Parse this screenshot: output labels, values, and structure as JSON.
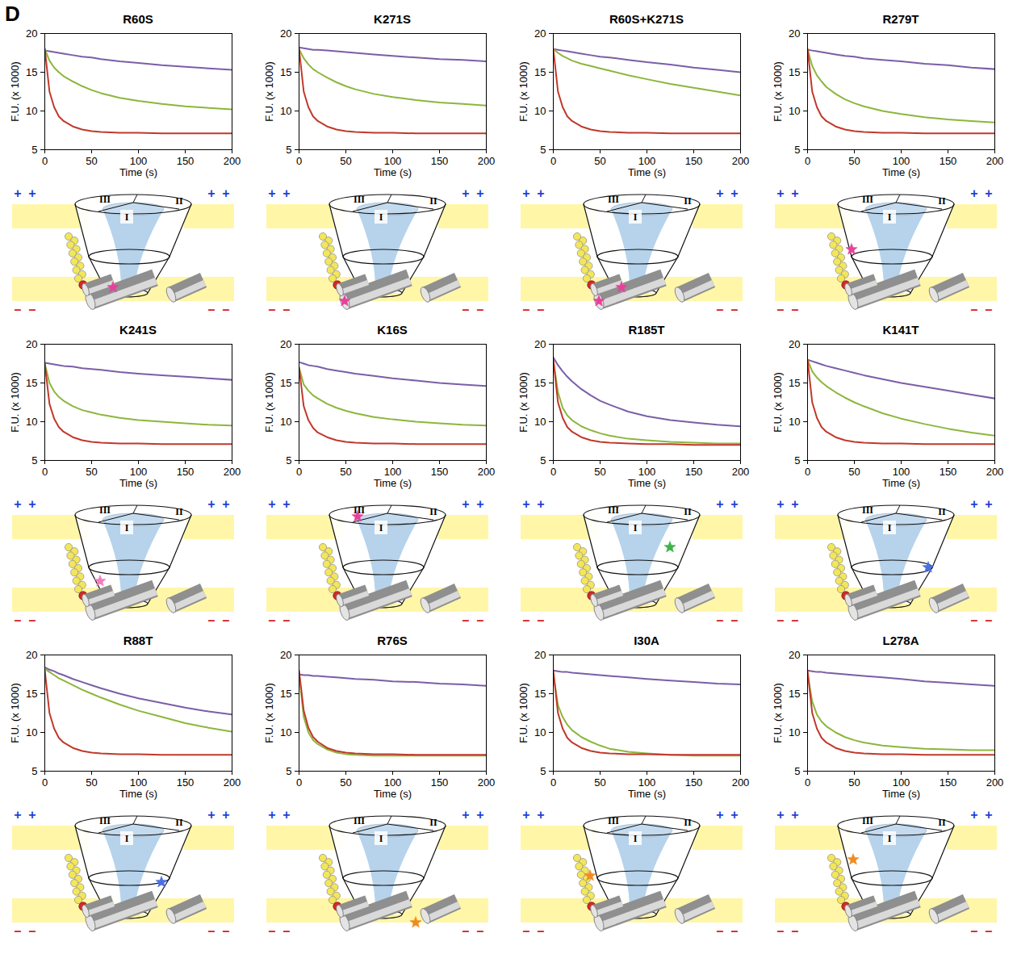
{
  "panel_label": "D",
  "diagram": {
    "sectors": [
      "I",
      "II",
      "III"
    ],
    "outside_sign": "+",
    "inside_sign": "–"
  },
  "chart_data": [
    {
      "type": "line",
      "title": "R60S",
      "x_label": "Time (s)",
      "y_label": "F.U. (x 1000)",
      "x": [
        0,
        5,
        10,
        15,
        20,
        30,
        40,
        50,
        60,
        80,
        100,
        125,
        150,
        175,
        200
      ],
      "xlim": [
        0,
        200
      ],
      "xticks": [
        0,
        50,
        100,
        150,
        200
      ],
      "ylim": [
        5,
        20
      ],
      "yticks": [
        5,
        10,
        15,
        20
      ],
      "series": [
        {
          "color": "#7b5ea7",
          "values": [
            17.8,
            17.7,
            17.6,
            17.5,
            17.4,
            17.2,
            17.0,
            16.9,
            16.7,
            16.4,
            16.2,
            15.9,
            15.7,
            15.5,
            15.3
          ]
        },
        {
          "color": "#8db63c",
          "values": [
            18.0,
            16.5,
            15.6,
            15.0,
            14.5,
            13.8,
            13.2,
            12.7,
            12.3,
            11.7,
            11.3,
            10.9,
            10.6,
            10.4,
            10.2
          ]
        },
        {
          "color": "#c0392b",
          "values": [
            18.0,
            12.5,
            10.5,
            9.3,
            8.7,
            8.0,
            7.6,
            7.4,
            7.3,
            7.2,
            7.2,
            7.1,
            7.1,
            7.1,
            7.1
          ]
        }
      ]
    },
    {
      "type": "line",
      "title": "K271S",
      "x_label": "Time (s)",
      "y_label": "F.U. (x 1000)",
      "x": [
        0,
        5,
        10,
        15,
        20,
        30,
        40,
        50,
        60,
        80,
        100,
        125,
        150,
        175,
        200
      ],
      "xlim": [
        0,
        200
      ],
      "xticks": [
        0,
        50,
        100,
        150,
        200
      ],
      "ylim": [
        5,
        20
      ],
      "yticks": [
        5,
        10,
        15,
        20
      ],
      "series": [
        {
          "color": "#7b5ea7",
          "values": [
            18.2,
            18.1,
            18.0,
            17.9,
            17.9,
            17.8,
            17.7,
            17.6,
            17.5,
            17.3,
            17.1,
            16.9,
            16.7,
            16.6,
            16.4
          ]
        },
        {
          "color": "#8db63c",
          "values": [
            18.0,
            16.8,
            16.0,
            15.4,
            15.0,
            14.3,
            13.7,
            13.2,
            12.8,
            12.2,
            11.8,
            11.4,
            11.1,
            10.9,
            10.7
          ]
        },
        {
          "color": "#c0392b",
          "values": [
            18.0,
            12.5,
            10.5,
            9.3,
            8.7,
            8.0,
            7.6,
            7.4,
            7.3,
            7.2,
            7.2,
            7.1,
            7.1,
            7.1,
            7.1
          ]
        }
      ]
    },
    {
      "type": "line",
      "title": "R60S+K271S",
      "x_label": "Time (s)",
      "y_label": "F.U. (x 1000)",
      "x": [
        0,
        5,
        10,
        15,
        20,
        30,
        40,
        50,
        60,
        80,
        100,
        125,
        150,
        175,
        200
      ],
      "xlim": [
        0,
        200
      ],
      "xticks": [
        0,
        50,
        100,
        150,
        200
      ],
      "ylim": [
        5,
        20
      ],
      "yticks": [
        5,
        10,
        15,
        20
      ],
      "series": [
        {
          "color": "#7b5ea7",
          "values": [
            18.0,
            17.9,
            17.8,
            17.7,
            17.6,
            17.4,
            17.2,
            17.0,
            16.9,
            16.6,
            16.3,
            16.0,
            15.6,
            15.3,
            15.0
          ]
        },
        {
          "color": "#8db63c",
          "values": [
            18.0,
            17.5,
            17.1,
            16.8,
            16.5,
            16.1,
            15.8,
            15.5,
            15.2,
            14.6,
            14.1,
            13.5,
            13.0,
            12.5,
            12.0
          ]
        },
        {
          "color": "#c0392b",
          "values": [
            18.0,
            12.5,
            10.5,
            9.3,
            8.7,
            8.0,
            7.6,
            7.4,
            7.3,
            7.2,
            7.2,
            7.1,
            7.1,
            7.1,
            7.1
          ]
        }
      ]
    },
    {
      "type": "line",
      "title": "R279T",
      "x_label": "Time (s)",
      "y_label": "F.U. (x 1000)",
      "x": [
        0,
        5,
        10,
        15,
        20,
        30,
        40,
        50,
        60,
        80,
        100,
        125,
        150,
        175,
        200
      ],
      "xlim": [
        0,
        200
      ],
      "xticks": [
        0,
        50,
        100,
        150,
        200
      ],
      "ylim": [
        5,
        20
      ],
      "yticks": [
        5,
        10,
        15,
        20
      ],
      "series": [
        {
          "color": "#7b5ea7",
          "values": [
            17.9,
            17.8,
            17.7,
            17.6,
            17.5,
            17.3,
            17.1,
            17.0,
            16.8,
            16.6,
            16.4,
            16.1,
            15.9,
            15.6,
            15.4
          ]
        },
        {
          "color": "#8db63c",
          "values": [
            18.0,
            15.8,
            14.6,
            13.8,
            13.1,
            12.2,
            11.5,
            11.0,
            10.6,
            10.0,
            9.6,
            9.2,
            8.9,
            8.7,
            8.5
          ]
        },
        {
          "color": "#c0392b",
          "values": [
            18.0,
            12.5,
            10.5,
            9.3,
            8.7,
            8.0,
            7.6,
            7.4,
            7.3,
            7.2,
            7.2,
            7.1,
            7.1,
            7.1,
            7.1
          ]
        }
      ]
    },
    {
      "type": "line",
      "title": "K241S",
      "x_label": "Time (s)",
      "y_label": "F.U. (x 1000)",
      "x": [
        0,
        5,
        10,
        15,
        20,
        30,
        40,
        50,
        60,
        80,
        100,
        125,
        150,
        175,
        200
      ],
      "xlim": [
        0,
        200
      ],
      "xticks": [
        0,
        50,
        100,
        150,
        200
      ],
      "ylim": [
        5,
        20
      ],
      "yticks": [
        5,
        10,
        15,
        20
      ],
      "series": [
        {
          "color": "#7b5ea7",
          "values": [
            17.6,
            17.5,
            17.4,
            17.3,
            17.2,
            17.1,
            16.9,
            16.8,
            16.7,
            16.4,
            16.2,
            16.0,
            15.8,
            15.6,
            15.4
          ]
        },
        {
          "color": "#8db63c",
          "values": [
            17.5,
            15.0,
            13.9,
            13.2,
            12.7,
            12.0,
            11.5,
            11.2,
            10.9,
            10.5,
            10.2,
            10.0,
            9.8,
            9.6,
            9.5
          ]
        },
        {
          "color": "#c0392b",
          "values": [
            17.5,
            12.3,
            10.4,
            9.3,
            8.7,
            8.0,
            7.6,
            7.4,
            7.3,
            7.2,
            7.2,
            7.1,
            7.1,
            7.1,
            7.1
          ]
        }
      ]
    },
    {
      "type": "line",
      "title": "K16S",
      "x_label": "Time (s)",
      "y_label": "F.U. (x 1000)",
      "x": [
        0,
        5,
        10,
        15,
        20,
        30,
        40,
        50,
        60,
        80,
        100,
        125,
        150,
        175,
        200
      ],
      "xlim": [
        0,
        200
      ],
      "xticks": [
        0,
        50,
        100,
        150,
        200
      ],
      "ylim": [
        5,
        20
      ],
      "yticks": [
        5,
        10,
        15,
        20
      ],
      "series": [
        {
          "color": "#7b5ea7",
          "values": [
            17.7,
            17.5,
            17.3,
            17.2,
            17.1,
            16.8,
            16.6,
            16.4,
            16.2,
            15.9,
            15.6,
            15.3,
            15.0,
            14.8,
            14.6
          ]
        },
        {
          "color": "#8db63c",
          "values": [
            17.0,
            14.8,
            14.0,
            13.4,
            13.0,
            12.3,
            11.8,
            11.4,
            11.1,
            10.6,
            10.3,
            10.0,
            9.8,
            9.6,
            9.5
          ]
        },
        {
          "color": "#c0392b",
          "values": [
            17.0,
            12.0,
            10.2,
            9.2,
            8.6,
            8.0,
            7.6,
            7.4,
            7.3,
            7.2,
            7.2,
            7.1,
            7.1,
            7.1,
            7.1
          ]
        }
      ]
    },
    {
      "type": "line",
      "title": "R185T",
      "x_label": "Time (s)",
      "y_label": "F.U. (x 1000)",
      "x": [
        0,
        5,
        10,
        15,
        20,
        30,
        40,
        50,
        60,
        80,
        100,
        125,
        150,
        175,
        200
      ],
      "xlim": [
        0,
        200
      ],
      "xticks": [
        0,
        50,
        100,
        150,
        200
      ],
      "ylim": [
        5,
        20
      ],
      "yticks": [
        5,
        10,
        15,
        20
      ],
      "series": [
        {
          "color": "#7b5ea7",
          "values": [
            18.3,
            17.3,
            16.5,
            15.8,
            15.2,
            14.2,
            13.4,
            12.7,
            12.2,
            11.3,
            10.7,
            10.2,
            9.9,
            9.6,
            9.4
          ]
        },
        {
          "color": "#8db63c",
          "values": [
            18.0,
            13.8,
            11.8,
            10.8,
            10.2,
            9.4,
            8.9,
            8.5,
            8.2,
            7.8,
            7.6,
            7.4,
            7.3,
            7.2,
            7.2
          ]
        },
        {
          "color": "#c0392b",
          "values": [
            18.0,
            12.5,
            10.5,
            9.3,
            8.7,
            8.0,
            7.6,
            7.4,
            7.3,
            7.2,
            7.1,
            7.1,
            7.0,
            7.0,
            7.0
          ]
        }
      ]
    },
    {
      "type": "line",
      "title": "K141T",
      "x_label": "Time (s)",
      "y_label": "F.U. (x 1000)",
      "x": [
        0,
        5,
        10,
        15,
        20,
        30,
        40,
        50,
        60,
        80,
        100,
        125,
        150,
        175,
        200
      ],
      "xlim": [
        0,
        200
      ],
      "xticks": [
        0,
        50,
        100,
        150,
        200
      ],
      "ylim": [
        5,
        20
      ],
      "yticks": [
        5,
        10,
        15,
        20
      ],
      "series": [
        {
          "color": "#7b5ea7",
          "values": [
            18.0,
            17.8,
            17.6,
            17.4,
            17.2,
            16.9,
            16.6,
            16.3,
            16.0,
            15.5,
            15.0,
            14.5,
            14.0,
            13.5,
            13.0
          ]
        },
        {
          "color": "#8db63c",
          "values": [
            18.0,
            16.5,
            15.7,
            15.1,
            14.6,
            13.8,
            13.1,
            12.5,
            12.0,
            11.1,
            10.4,
            9.7,
            9.1,
            8.6,
            8.2
          ]
        },
        {
          "color": "#c0392b",
          "values": [
            18.0,
            12.5,
            10.5,
            9.3,
            8.7,
            8.0,
            7.6,
            7.4,
            7.3,
            7.2,
            7.2,
            7.1,
            7.1,
            7.1,
            7.1
          ]
        }
      ]
    },
    {
      "type": "line",
      "title": "R88T",
      "x_label": "Time (s)",
      "y_label": "F.U. (x 1000)",
      "x": [
        0,
        5,
        10,
        15,
        20,
        30,
        40,
        50,
        60,
        80,
        100,
        125,
        150,
        175,
        200
      ],
      "xlim": [
        0,
        200
      ],
      "xticks": [
        0,
        50,
        100,
        150,
        200
      ],
      "ylim": [
        5,
        20
      ],
      "yticks": [
        5,
        10,
        15,
        20
      ],
      "series": [
        {
          "color": "#7b5ea7",
          "values": [
            18.4,
            18.1,
            17.9,
            17.6,
            17.4,
            16.9,
            16.5,
            16.1,
            15.7,
            15.0,
            14.4,
            13.8,
            13.2,
            12.7,
            12.3
          ]
        },
        {
          "color": "#8db63c",
          "values": [
            18.2,
            17.8,
            17.4,
            17.0,
            16.7,
            16.1,
            15.5,
            15.0,
            14.5,
            13.6,
            12.8,
            12.0,
            11.2,
            10.6,
            10.1
          ]
        },
        {
          "color": "#c0392b",
          "values": [
            18.0,
            12.5,
            10.5,
            9.3,
            8.7,
            8.0,
            7.6,
            7.4,
            7.3,
            7.2,
            7.2,
            7.1,
            7.1,
            7.1,
            7.1
          ]
        }
      ]
    },
    {
      "type": "line",
      "title": "R76S",
      "x_label": "Time (s)",
      "y_label": "F.U. (x 1000)",
      "x": [
        0,
        5,
        10,
        15,
        20,
        30,
        40,
        50,
        60,
        80,
        100,
        125,
        150,
        175,
        200
      ],
      "xlim": [
        0,
        200
      ],
      "xticks": [
        0,
        50,
        100,
        150,
        200
      ],
      "ylim": [
        5,
        20
      ],
      "yticks": [
        5,
        10,
        15,
        20
      ],
      "series": [
        {
          "color": "#7b5ea7",
          "values": [
            17.5,
            17.4,
            17.4,
            17.3,
            17.3,
            17.2,
            17.1,
            17.0,
            16.9,
            16.8,
            16.6,
            16.5,
            16.3,
            16.2,
            16.0
          ]
        },
        {
          "color": "#8db63c",
          "values": [
            17.5,
            12.0,
            10.0,
            9.0,
            8.5,
            7.8,
            7.4,
            7.2,
            7.1,
            7.0,
            7.0,
            7.0,
            7.0,
            7.0,
            7.0
          ]
        },
        {
          "color": "#c0392b",
          "values": [
            18.0,
            12.8,
            10.6,
            9.4,
            8.8,
            8.0,
            7.6,
            7.4,
            7.3,
            7.2,
            7.2,
            7.1,
            7.1,
            7.1,
            7.1
          ]
        }
      ]
    },
    {
      "type": "line",
      "title": "I30A",
      "x_label": "Time (s)",
      "y_label": "F.U. (x 1000)",
      "x": [
        0,
        5,
        10,
        15,
        20,
        30,
        40,
        50,
        60,
        80,
        100,
        125,
        150,
        175,
        200
      ],
      "xlim": [
        0,
        200
      ],
      "xticks": [
        0,
        50,
        100,
        150,
        200
      ],
      "ylim": [
        5,
        20
      ],
      "yticks": [
        5,
        10,
        15,
        20
      ],
      "series": [
        {
          "color": "#7b5ea7",
          "values": [
            18.0,
            17.9,
            17.8,
            17.8,
            17.7,
            17.6,
            17.5,
            17.4,
            17.3,
            17.1,
            16.9,
            16.7,
            16.5,
            16.3,
            16.2
          ]
        },
        {
          "color": "#8db63c",
          "values": [
            17.5,
            13.5,
            12.0,
            11.0,
            10.3,
            9.4,
            8.8,
            8.3,
            7.9,
            7.5,
            7.3,
            7.1,
            7.0,
            7.0,
            7.0
          ]
        },
        {
          "color": "#c0392b",
          "values": [
            18.0,
            12.5,
            10.5,
            9.3,
            8.7,
            8.0,
            7.6,
            7.4,
            7.3,
            7.2,
            7.2,
            7.1,
            7.1,
            7.1,
            7.1
          ]
        }
      ]
    },
    {
      "type": "line",
      "title": "L278A",
      "x_label": "Time (s)",
      "y_label": "F.U. (x 1000)",
      "x": [
        0,
        5,
        10,
        15,
        20,
        30,
        40,
        50,
        60,
        80,
        100,
        125,
        150,
        175,
        200
      ],
      "xlim": [
        0,
        200
      ],
      "xticks": [
        0,
        50,
        100,
        150,
        200
      ],
      "ylim": [
        5,
        20
      ],
      "yticks": [
        5,
        10,
        15,
        20
      ],
      "series": [
        {
          "color": "#7b5ea7",
          "values": [
            18.0,
            17.9,
            17.8,
            17.8,
            17.7,
            17.6,
            17.5,
            17.4,
            17.3,
            17.1,
            16.9,
            16.6,
            16.4,
            16.2,
            16.0
          ]
        },
        {
          "color": "#8db63c",
          "values": [
            17.5,
            14.0,
            12.3,
            11.4,
            10.8,
            10.0,
            9.4,
            9.0,
            8.7,
            8.3,
            8.1,
            7.9,
            7.8,
            7.7,
            7.7
          ]
        },
        {
          "color": "#c0392b",
          "values": [
            18.0,
            12.5,
            10.5,
            9.3,
            8.7,
            8.0,
            7.6,
            7.4,
            7.3,
            7.2,
            7.2,
            7.1,
            7.1,
            7.1,
            7.1
          ]
        }
      ]
    }
  ]
}
